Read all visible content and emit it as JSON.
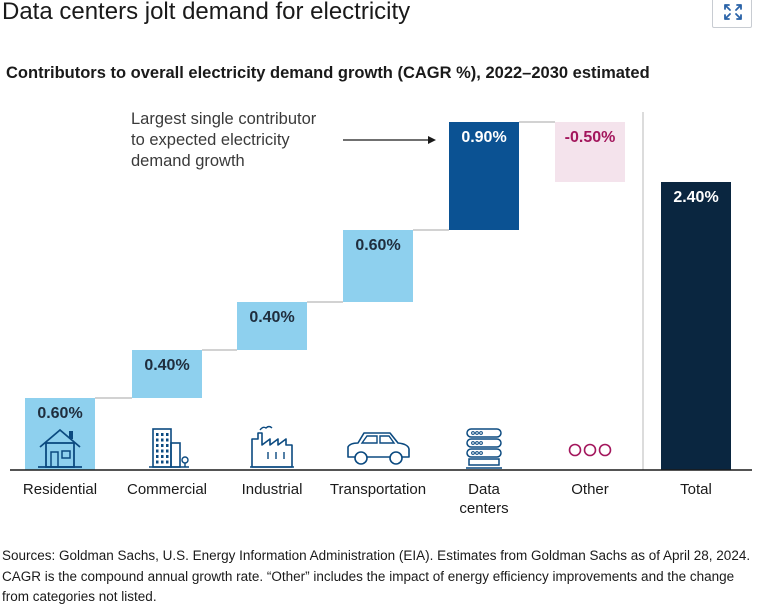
{
  "title": "Data centers jolt demand for electricity",
  "expand_icon": "expand-arrows-icon",
  "footnote": "Sources: Goldman Sachs, U.S. Energy Information Administration (EIA). Estimates from Goldman Sachs as of April 28, 2024. CAGR is the compound annual growth rate. “Other” includes the impact of energy efficiency improvements and the change from categories not listed.",
  "chart_data": {
    "type": "bar",
    "variant": "waterfall",
    "title": "Contributors to overall electricity demand growth (CAGR %), 2022–2030 estimated",
    "categories": [
      {
        "label": "Residential",
        "value": 0.6,
        "value_label": "0.60%",
        "kind": "increase",
        "icon": "house-icon"
      },
      {
        "label": "Commercial",
        "value": 0.4,
        "value_label": "0.40%",
        "kind": "increase",
        "icon": "office-building-icon"
      },
      {
        "label": "Industrial",
        "value": 0.4,
        "value_label": "0.40%",
        "kind": "increase",
        "icon": "factory-icon"
      },
      {
        "label": "Transportation",
        "value": 0.6,
        "value_label": "0.60%",
        "kind": "increase",
        "icon": "car-icon"
      },
      {
        "label": "Data\ncenters",
        "value": 0.9,
        "value_label": "0.90%",
        "kind": "highlight",
        "icon": "server-stack-icon"
      },
      {
        "label": "Other",
        "value": -0.5,
        "value_label": "-0.50%",
        "kind": "decrease",
        "icon": "ellipsis-circles-icon"
      },
      {
        "label": "Total",
        "value": 2.4,
        "value_label": "2.40%",
        "kind": "total",
        "icon": ""
      }
    ],
    "ylim": [
      0,
      3.4
    ],
    "grid": false,
    "annotation": {
      "text_lines": [
        "Largest single contributor",
        "to expected electricity",
        "demand growth"
      ],
      "points_to": "Data\ncenters"
    },
    "colors": {
      "increase": "#8ed0ee",
      "highlight": "#0b5293",
      "decrease": "#f4e3ec",
      "total": "#0a2640",
      "label_dark": "#1f2d3d",
      "label_light": "#ffffff",
      "label_negative": "#a3165c",
      "icon": "#0b4a80",
      "icon_other": "#a3165c",
      "connector": "#b8b8b8",
      "baseline": "#1a1a1a",
      "divider": "#c4c4c4"
    }
  }
}
